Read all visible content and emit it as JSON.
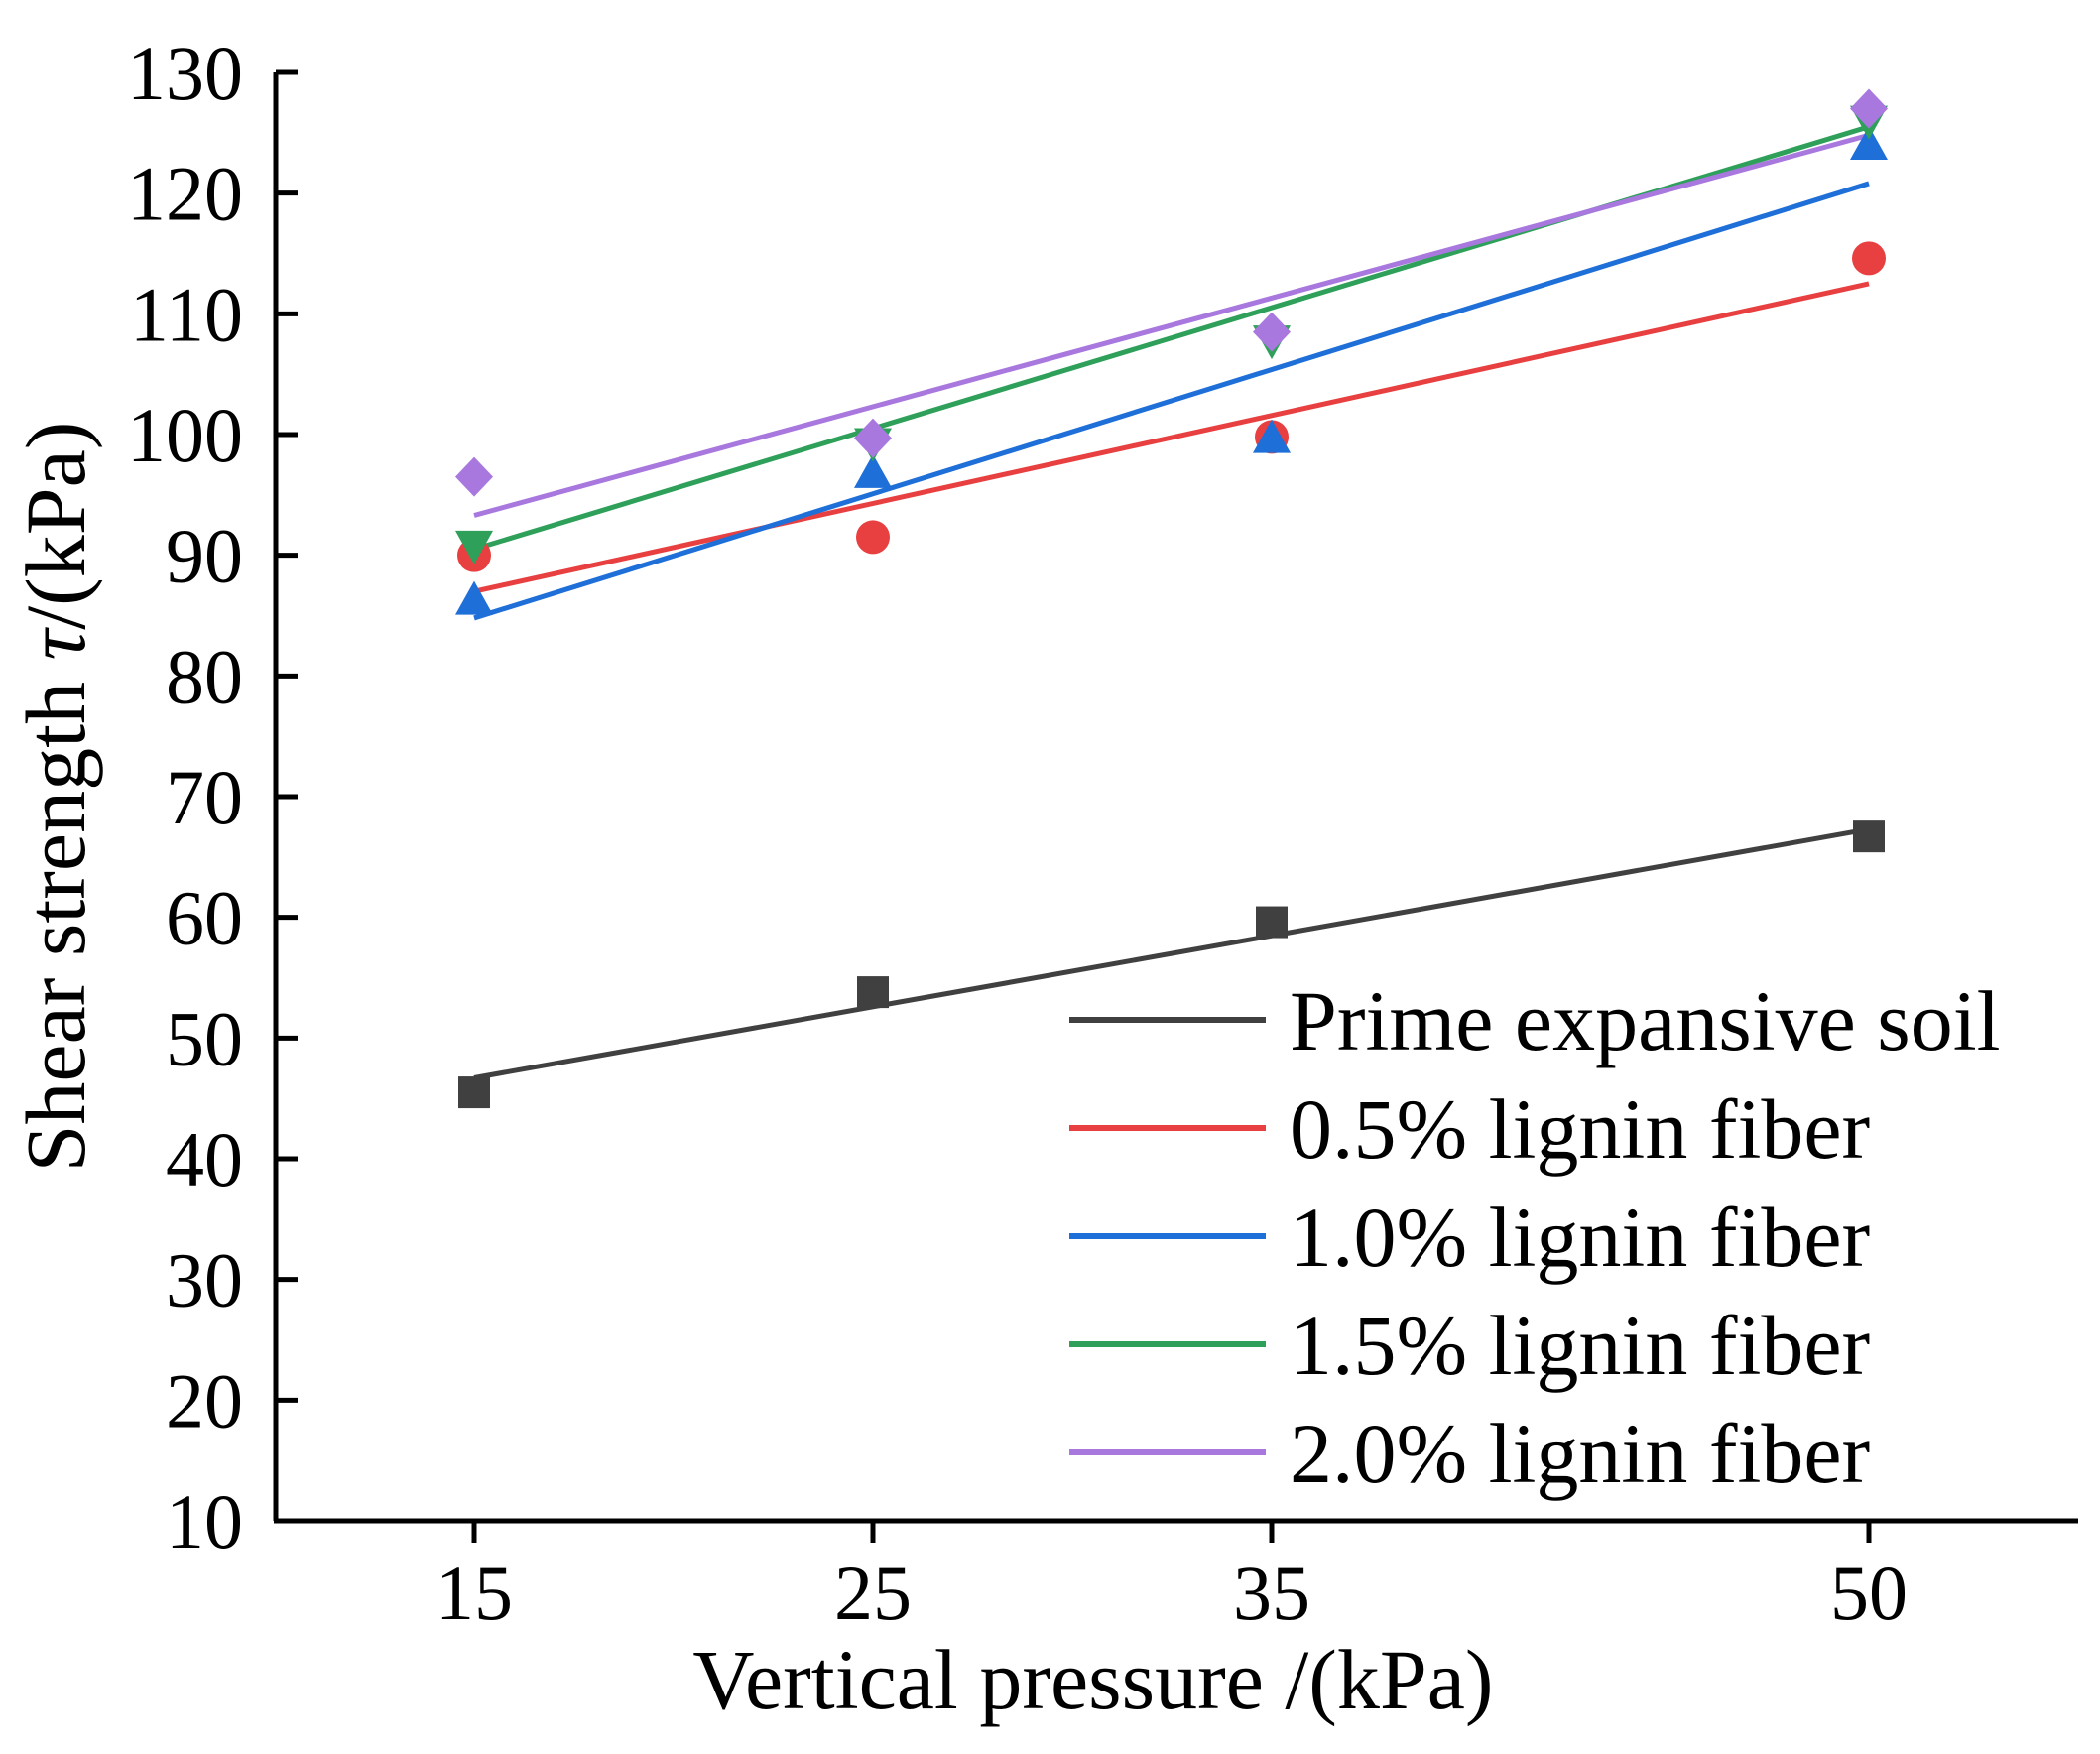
{
  "chart_data": {
    "type": "scatter",
    "xlabel": "Vertical pressure /(kPa)",
    "ylabel_main": "Shear strength ",
    "ylabel_symbol": "τ",
    "ylabel_unit": "/(kPa)",
    "x_ticks": [
      "15",
      "25",
      "35",
      "50"
    ],
    "y_ticks": [
      "10",
      "20",
      "30",
      "40",
      "50",
      "60",
      "70",
      "80",
      "90",
      "100",
      "110",
      "120",
      "130"
    ],
    "ylim": [
      10,
      130
    ],
    "legend_position": "bottom-right",
    "grid": false,
    "series": [
      {
        "name": "Prime expansive soil",
        "color": "#404040",
        "marker": "square",
        "x": [
          15,
          25,
          35,
          50
        ],
        "y": [
          45.5,
          53.8,
          59.6,
          66.7
        ],
        "fit": {
          "y_start": 46.7,
          "y_end": 67.3
        }
      },
      {
        "name": "0.5% lignin fiber",
        "color": "#e84040",
        "marker": "circle",
        "x": [
          15,
          25,
          35,
          50
        ],
        "y": [
          90.0,
          91.5,
          99.8,
          114.6
        ],
        "fit": {
          "y_start": 87.0,
          "y_end": 112.5
        }
      },
      {
        "name": "1.0% lignin fiber",
        "color": "#1f6fd8",
        "marker": "triangle-up",
        "x": [
          15,
          25,
          35,
          50
        ],
        "y": [
          86.3,
          96.8,
          99.7,
          124.0
        ],
        "fit": {
          "y_start": 84.8,
          "y_end": 120.8
        }
      },
      {
        "name": "1.5% lignin fiber",
        "color": "#2ea05a",
        "marker": "triangle-down",
        "x": [
          15,
          25,
          35,
          50
        ],
        "y": [
          90.8,
          99.3,
          107.8,
          126.0
        ],
        "fit": {
          "y_start": 90.5,
          "y_end": 125.5
        }
      },
      {
        "name": "2.0% lignin fiber",
        "color": "#a878de",
        "marker": "diamond",
        "x": [
          15,
          25,
          35,
          50
        ],
        "y": [
          96.5,
          99.7,
          108.5,
          127.0
        ],
        "fit": {
          "y_start": 93.3,
          "y_end": 124.8
        }
      }
    ]
  }
}
